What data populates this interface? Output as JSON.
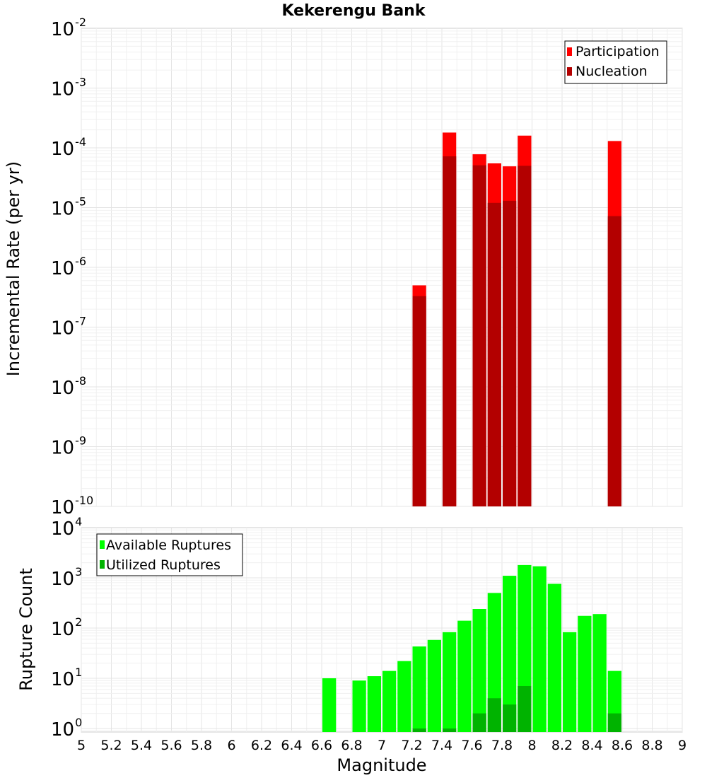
{
  "chart_data": [
    {
      "type": "bar",
      "title": "Kekerengu Bank",
      "xlabel": "Magnitude",
      "ylabel": "Incremental Rate (per yr)",
      "yscale": "log",
      "ylim": [
        1e-10,
        0.01
      ],
      "xlim": [
        5,
        9
      ],
      "bar_width": 0.1,
      "legend_position": "top-right",
      "y_tick_exponents": [
        "-10",
        "-9",
        "-8",
        "-7",
        "-6",
        "-5",
        "-4",
        "-3",
        "-2"
      ],
      "series": [
        {
          "name": "Participation",
          "color": "#ff0000",
          "x": [
            7.25,
            7.45,
            7.65,
            7.75,
            7.85,
            7.95,
            8.55
          ],
          "values": [
            5e-07,
            0.00018,
            7.8e-05,
            5.5e-05,
            4.9e-05,
            0.00016,
            0.00013
          ]
        },
        {
          "name": "Nucleation",
          "color": "#b30000",
          "x": [
            7.25,
            7.45,
            7.65,
            7.75,
            7.85,
            7.95,
            8.55
          ],
          "values": [
            3.3e-07,
            7.2e-05,
            5.1e-05,
            1.2e-05,
            1.3e-05,
            5e-05,
            7.2e-06
          ]
        }
      ]
    },
    {
      "type": "bar",
      "title": "",
      "xlabel": "Magnitude",
      "ylabel": "Rupture Count",
      "yscale": "log",
      "ylim": [
        0.85,
        10000
      ],
      "xlim": [
        5,
        9
      ],
      "bar_width": 0.1,
      "legend_position": "top-left",
      "y_tick_exponents": [
        "0",
        "1",
        "2",
        "3",
        "4"
      ],
      "x_tick_labels": [
        "5",
        "5.2",
        "5.4",
        "5.6",
        "5.8",
        "6",
        "6.2",
        "6.4",
        "6.6",
        "6.8",
        "7",
        "7.2",
        "7.4",
        "7.6",
        "7.8",
        "8",
        "8.2",
        "8.4",
        "8.6",
        "8.8",
        "9"
      ],
      "series": [
        {
          "name": "Available Ruptures",
          "color": "#00ff00",
          "x": [
            6.65,
            6.85,
            6.95,
            7.05,
            7.15,
            7.25,
            7.35,
            7.45,
            7.55,
            7.65,
            7.75,
            7.85,
            7.95,
            8.05,
            8.15,
            8.25,
            8.35,
            8.45,
            8.55
          ],
          "values": [
            10,
            9,
            11,
            14,
            22,
            43,
            58,
            83,
            140,
            240,
            500,
            1100,
            1800,
            1700,
            760,
            83,
            175,
            190,
            14
          ]
        },
        {
          "name": "Utilized Ruptures",
          "color": "#00b300",
          "x": [
            7.25,
            7.45,
            7.65,
            7.75,
            7.85,
            7.95,
            8.55
          ],
          "values": [
            1,
            1,
            2,
            4,
            3,
            7,
            2
          ]
        }
      ]
    }
  ]
}
